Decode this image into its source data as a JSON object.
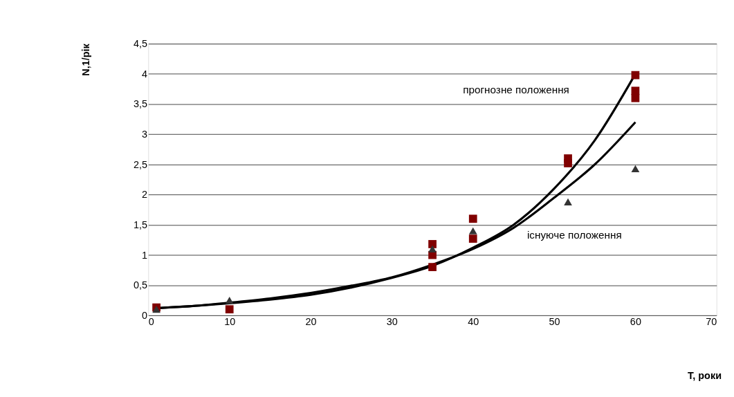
{
  "chart_data": {
    "type": "scatter",
    "xlabel": "T, роки",
    "ylabel": "N,1/рік",
    "xlim": [
      0,
      70
    ],
    "xticks": [
      0,
      10,
      20,
      30,
      40,
      50,
      60,
      70
    ],
    "ylim": [
      0,
      4.5
    ],
    "yticks": [
      0,
      {
        "value": 0.5,
        "label": "0,5"
      },
      1,
      {
        "value": 1.5,
        "label": "1,5"
      },
      2,
      {
        "value": 2.5,
        "label": "2,5"
      },
      3,
      {
        "value": 3.5,
        "label": "3,5"
      },
      4,
      {
        "value": 4.5,
        "label": "4,5"
      }
    ],
    "grid": "y",
    "series": [
      {
        "marker": "square",
        "color": "#800000",
        "x": [
          1,
          10,
          35,
          35,
          35,
          40,
          40,
          51.7,
          51.7,
          60,
          60,
          60
        ],
        "values": [
          0.13,
          0.1,
          1.18,
          1.0,
          0.8,
          1.6,
          1.27,
          2.6,
          2.52,
          3.98,
          3.72,
          3.6
        ]
      },
      {
        "marker": "triangle",
        "color": "#333333",
        "x": [
          1,
          10,
          35,
          40,
          51.7,
          60
        ],
        "values": [
          0.1,
          0.25,
          1.1,
          1.4,
          1.88,
          2.43
        ]
      },
      {
        "type": "line",
        "line_style": "solid",
        "color": "#000000",
        "x": [
          1,
          5,
          10,
          15,
          20,
          25,
          30,
          35,
          40,
          45,
          50,
          55,
          60
        ],
        "values": [
          0.12,
          0.15,
          0.2,
          0.26,
          0.34,
          0.46,
          0.62,
          0.82,
          1.12,
          1.5,
          2.1,
          2.9,
          4.0
        ]
      },
      {
        "type": "line",
        "line_style": "solid",
        "color": "#000000",
        "x": [
          1,
          5,
          10,
          15,
          20,
          25,
          30,
          35,
          40,
          45,
          50,
          55,
          60
        ],
        "values": [
          0.12,
          0.15,
          0.21,
          0.28,
          0.37,
          0.49,
          0.63,
          0.84,
          1.1,
          1.45,
          1.95,
          2.5,
          3.2
        ]
      }
    ],
    "annotations": [
      "прогнозне положення",
      "існуюче положення"
    ]
  }
}
